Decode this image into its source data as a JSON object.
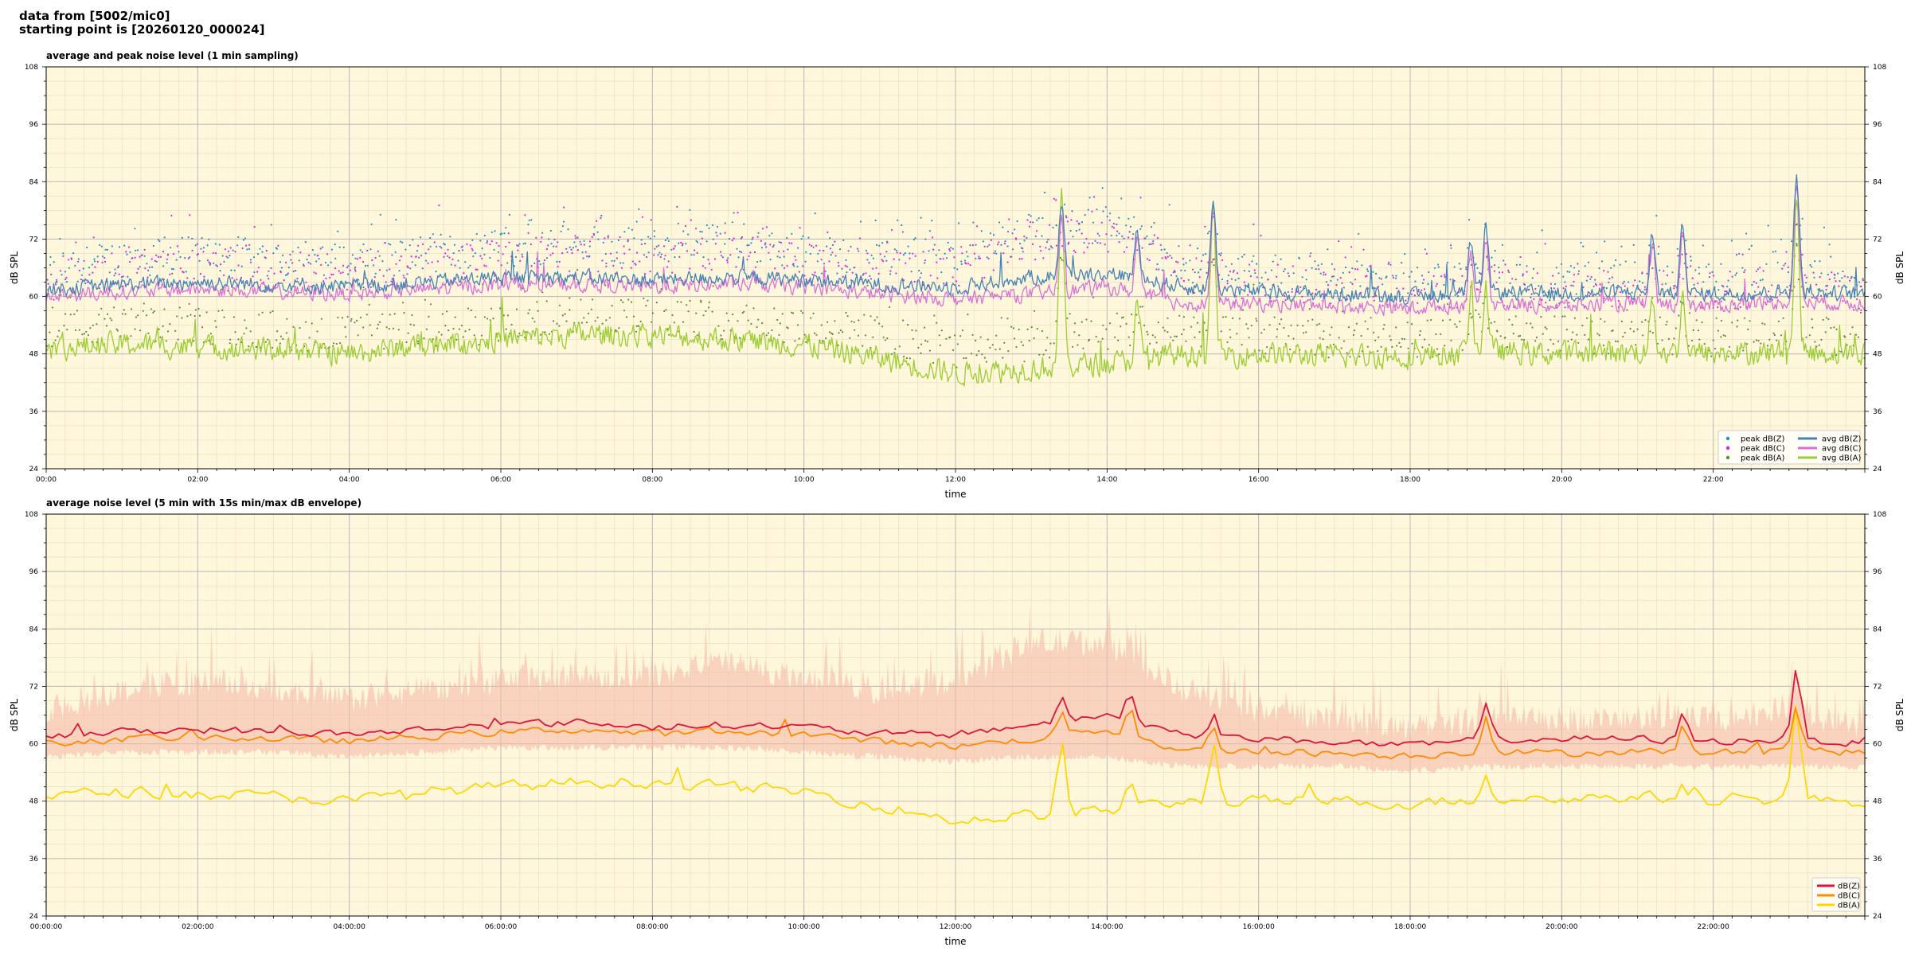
{
  "header": {
    "line1": "data from [5002/mic0]",
    "line2": "starting point is [20260120_000024]"
  },
  "colors": {
    "plot_bg": "#fff7dc",
    "grid_major": "#b8b8b8",
    "grid_minor": "#e6dcc0",
    "peak_z": "#1e90c8",
    "peak_c": "#e020e0",
    "peak_a": "#5a8a3a",
    "avg_z": "#4682b4",
    "avg_c": "#da70d6",
    "avg_a": "#9acd32",
    "env_z": "#dc143c",
    "env_c": "#ff8c00",
    "env_a": "#ffd700",
    "envelope_fill": "#f4b6a6"
  },
  "chart_data": [
    {
      "type": "line",
      "title": "average and peak noise level (1 min sampling)",
      "xlabel": "time",
      "ylabel": "dB SPL",
      "ylim": [
        24,
        108
      ],
      "xlim": [
        0,
        24
      ],
      "yticks": [
        24,
        36,
        48,
        60,
        72,
        84,
        96,
        108
      ],
      "xticks": [
        "00:00",
        "02:00",
        "04:00",
        "06:00",
        "08:00",
        "10:00",
        "12:00",
        "14:00",
        "16:00",
        "18:00",
        "20:00",
        "22:00"
      ],
      "grid": true,
      "legend_position": "bottom-right",
      "x": [
        0,
        1,
        2,
        3,
        4,
        5,
        6,
        7,
        8,
        9,
        10,
        11,
        12,
        13,
        14,
        15,
        16,
        17,
        18,
        19,
        20,
        21,
        22,
        23,
        24
      ],
      "series": [
        {
          "name": "avg dB(Z)",
          "kind": "line",
          "values": [
            61.5,
            62.5,
            63,
            62.5,
            62,
            63,
            64,
            64,
            63.5,
            64,
            63.5,
            62.5,
            62,
            64,
            65,
            62,
            61,
            60.5,
            60,
            61,
            60.5,
            61,
            60.5,
            61,
            60.5
          ]
        },
        {
          "name": "avg dB(C)",
          "kind": "line",
          "values": [
            60,
            61,
            61.5,
            61,
            60.5,
            61.5,
            62.5,
            62.5,
            62,
            62.5,
            62,
            60.5,
            59.5,
            60.5,
            62,
            58.5,
            58.5,
            58,
            57.5,
            58.5,
            58,
            58.5,
            58,
            59,
            58.5
          ]
        },
        {
          "name": "avg dB(A)",
          "kind": "line",
          "values": [
            49,
            50,
            49.5,
            49,
            48,
            50,
            51,
            52,
            52,
            51,
            50,
            47,
            44,
            45,
            46,
            48,
            48,
            47.5,
            47.5,
            48.5,
            48,
            48.5,
            48,
            48.5,
            48
          ]
        },
        {
          "name": "peak dB(Z)",
          "kind": "scatter",
          "values": [
            65,
            68,
            69,
            68,
            67,
            69,
            70,
            71,
            70,
            72,
            69,
            68,
            68,
            73,
            75,
            67,
            65,
            64,
            63,
            64,
            63,
            64,
            63,
            64,
            63
          ]
        },
        {
          "name": "peak dB(C)",
          "kind": "scatter",
          "values": [
            63,
            66,
            67,
            66,
            65,
            67,
            68,
            69,
            68,
            70,
            67,
            66,
            66,
            71,
            73,
            65,
            63,
            62,
            61,
            62,
            61,
            62,
            61,
            62,
            61
          ]
        },
        {
          "name": "peak dB(A)",
          "kind": "scatter",
          "values": [
            53,
            54,
            54,
            53,
            52,
            53,
            54,
            56,
            56,
            55,
            54,
            52,
            49,
            50,
            52,
            52,
            52,
            51,
            51,
            52,
            52,
            52,
            51,
            52,
            51
          ]
        }
      ],
      "spikes": [
        {
          "t": 13.4,
          "z": 80,
          "c": 76,
          "a": 80
        },
        {
          "t": 14.4,
          "z": 74,
          "c": 72,
          "a": 58
        },
        {
          "t": 15.4,
          "z": 80,
          "c": 78,
          "a": 78
        },
        {
          "t": 18.8,
          "z": 71,
          "c": 70,
          "a": 60
        },
        {
          "t": 19.0,
          "z": 74,
          "c": 72,
          "a": 62
        },
        {
          "t": 21.2,
          "z": 73,
          "c": 71,
          "a": 60
        },
        {
          "t": 21.6,
          "z": 75,
          "c": 74,
          "a": 60
        },
        {
          "t": 23.1,
          "z": 86,
          "c": 84,
          "a": 80
        }
      ]
    },
    {
      "type": "line",
      "title": "average noise level (5 min with 15s min/max dB envelope)",
      "xlabel": "time",
      "ylabel": "dB SPL",
      "ylim": [
        24,
        108
      ],
      "xlim": [
        0,
        24
      ],
      "yticks": [
        24,
        36,
        48,
        60,
        72,
        84,
        96,
        108
      ],
      "xticks": [
        "00:00:00",
        "02:00:00",
        "04:00:00",
        "06:00:00",
        "08:00:00",
        "10:00:00",
        "12:00:00",
        "14:00:00",
        "16:00:00",
        "18:00:00",
        "20:00:00",
        "22:00:00"
      ],
      "grid": true,
      "legend_position": "bottom-right",
      "x": [
        0,
        1,
        2,
        3,
        4,
        5,
        6,
        7,
        8,
        9,
        10,
        11,
        12,
        13,
        14,
        15,
        16,
        17,
        18,
        19,
        20,
        21,
        22,
        23,
        24
      ],
      "series": [
        {
          "name": "dB(Z)",
          "kind": "line",
          "values": [
            61.5,
            62.5,
            63,
            62.5,
            62,
            63,
            64,
            64.5,
            63.5,
            64,
            63.5,
            62,
            62,
            64,
            66,
            62,
            61,
            60.5,
            59.5,
            61,
            61,
            61,
            60.5,
            61,
            60
          ]
        },
        {
          "name": "dB(C)",
          "kind": "line",
          "values": [
            60,
            61,
            61.5,
            61,
            60.5,
            61.5,
            62.5,
            63,
            62,
            62.5,
            62,
            60.5,
            59.5,
            61,
            63,
            58.5,
            58.5,
            58,
            57.5,
            58.5,
            58,
            58.5,
            58,
            59,
            58
          ]
        },
        {
          "name": "dB(A)",
          "kind": "line",
          "values": [
            49,
            50,
            49.5,
            49,
            48,
            50,
            51,
            52,
            52,
            51,
            50,
            47,
            44,
            45,
            46,
            48,
            48,
            48,
            47.5,
            48.5,
            48.5,
            49,
            48,
            48.5,
            48
          ]
        }
      ],
      "envelope_max": [
        66,
        70,
        72,
        70,
        68,
        70,
        72,
        73,
        73,
        76,
        72,
        70,
        72,
        80,
        80,
        70,
        66,
        64,
        62,
        64,
        64,
        64,
        64,
        66,
        62
      ],
      "envelope_min": [
        58,
        59,
        59,
        59,
        58,
        59,
        60,
        60,
        60,
        60,
        59,
        58,
        57,
        58,
        58,
        56,
        56,
        56,
        55,
        56,
        56,
        56,
        56,
        56,
        56
      ],
      "spikes": [
        {
          "t": 13.4,
          "z": 69,
          "c": 67,
          "a": 60
        },
        {
          "t": 14.3,
          "z": 71,
          "c": 68,
          "a": 52
        },
        {
          "t": 15.4,
          "z": 66,
          "c": 64,
          "a": 60
        },
        {
          "t": 19.0,
          "z": 68,
          "c": 66,
          "a": 54
        },
        {
          "t": 21.6,
          "z": 66,
          "c": 64,
          "a": 52
        },
        {
          "t": 23.1,
          "z": 76,
          "c": 68,
          "a": 68
        }
      ]
    }
  ]
}
